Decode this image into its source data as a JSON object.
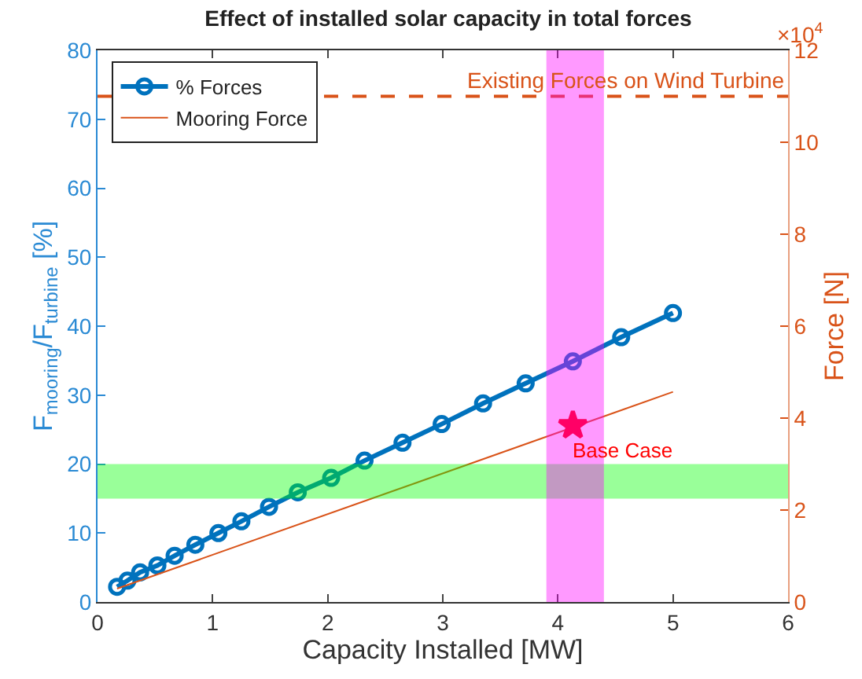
{
  "chart_data": {
    "type": "line",
    "title": "Effect of installed solar capacity in total forces",
    "xlabel": "Capacity Installed [MW]",
    "ylabel": "F$_{mooring}$/F$_{turbine}$ [%]",
    "y2label": "Force [N]",
    "xlim": [
      0,
      6
    ],
    "xticks": [
      0,
      1,
      2,
      3,
      4,
      5,
      6
    ],
    "ylim": [
      0,
      80
    ],
    "yticks": [
      0,
      10,
      20,
      30,
      40,
      50,
      60,
      70,
      80
    ],
    "y2lim": [
      0,
      12
    ],
    "y2ticks": [
      0,
      2,
      4,
      6,
      8,
      10,
      12
    ],
    "series": [
      {
        "name": "% Forces",
        "marker": "circle",
        "color": "#0072bd",
        "x": [
          0.17,
          0.26,
          0.37,
          0.52,
          0.67,
          0.85,
          1.05,
          1.25,
          1.49,
          1.74,
          2.03,
          2.32,
          2.65,
          2.99,
          3.35,
          3.72,
          4.13,
          4.55,
          5.0
        ],
        "values": [
          2.2,
          3.1,
          4.3,
          5.3,
          6.7,
          8.3,
          10.0,
          11.7,
          13.8,
          15.9,
          18.0,
          20.5,
          23.1,
          25.8,
          28.8,
          31.7,
          34.9,
          38.4,
          41.9
        ]
      },
      {
        "name": "Mooring Force",
        "marker": "none",
        "color": "#d95319",
        "axis": "y2",
        "x": [
          0.17,
          5.0
        ],
        "values": [
          0.29,
          4.57
        ]
      },
      {
        "type": "scatter",
        "marker": "star",
        "color": "#ff0000",
        "axis": "y2",
        "x": [
          4.13
        ],
        "values": [
          3.84
        ]
      }
    ],
    "ref_lines": [
      {
        "axis": "y2",
        "value": 11,
        "label": "Existing Forces on Wind Turbine",
        "color": "#d95319",
        "line_style": "dashed"
      }
    ],
    "bands": [
      {
        "axis": "y",
        "from": 15,
        "to": 20,
        "color": "#00ff00"
      },
      {
        "axis": "x",
        "from": 3.9,
        "to": 4.4,
        "color": "#ff00ff"
      }
    ],
    "annotations": [
      "Base Case",
      "×10$^{4}$"
    ],
    "legend": "top left"
  }
}
